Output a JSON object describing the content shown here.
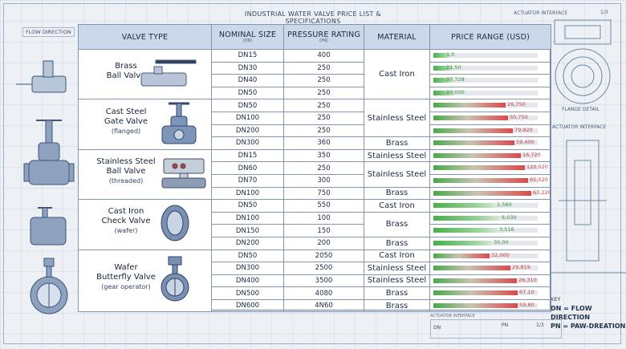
{
  "title": "INDUSTRIAL WATER VALVE PRICE LIST & SPECIFICATIONS",
  "top_right_label": "ACTUATOR INTERFACE",
  "top_right_num": "1/3",
  "flow_label": "FLOW DIRECTION",
  "side_labels": {
    "flange_detail": "FLANGE DETAIL",
    "actuator_interface": "ACTUATOR INTERFACE"
  },
  "bottom_legend": {
    "title": "ACTUATOR INTERFACE",
    "dn": "DN",
    "pn": "PN",
    "num": "1/3"
  },
  "key": {
    "title": "KEY",
    "dn_line": "DN = FLOW DIRECTION",
    "pn_line": "PN = PAW-DREATION"
  },
  "table": {
    "headers": {
      "valve_type": "VALVE TYPE",
      "nominal_size": "NOMINAL SIZE",
      "nominal_size_sub": "(DN)",
      "pressure": "PRESSURE RATING",
      "pressure_sub": "(PN)",
      "material": "MATERIAL",
      "price": "PRICE RANGE (USD)"
    },
    "groups": [
      {
        "name": "Brass",
        "name2": "Ball Valve",
        "sub": "",
        "icon": "brass-ball-valve-icon",
        "rows": [
          {
            "dn": "DN15",
            "pn": "400",
            "price": "1.0",
            "level": 0.02,
            "tone": "g"
          },
          {
            "dn": "DN30",
            "pn": "250",
            "price": "21.50",
            "level": 0.05,
            "tone": "g"
          },
          {
            "dn": "DN40",
            "pn": "250",
            "price": "37,728",
            "level": 0.05,
            "tone": "g"
          },
          {
            "dn": "DN50",
            "pn": "250",
            "price": "20,000",
            "level": 0.06,
            "tone": "g"
          }
        ],
        "materials": [
          {
            "text": "Cast Iron",
            "span": 4
          }
        ]
      },
      {
        "name": "Cast Steel",
        "name2": "Gate Valve",
        "sub": "(flanged)",
        "icon": "gate-valve-icon",
        "rows": [
          {
            "dn": "DN50",
            "pn": "250",
            "price": "26,750",
            "level": 0.55,
            "tone": "r"
          },
          {
            "dn": "DN100",
            "pn": "250",
            "price": "50,750",
            "level": 0.58,
            "tone": "r"
          },
          {
            "dn": "DN200",
            "pn": "250",
            "price": "79,920",
            "level": 0.62,
            "tone": "r"
          },
          {
            "dn": "DN300",
            "pn": "360",
            "price": "59,400",
            "level": 0.64,
            "tone": "r"
          }
        ],
        "materials": [
          {
            "text": "Stainless Steel",
            "span": 3
          },
          {
            "text": "Brass",
            "span": 1
          }
        ]
      },
      {
        "name": "Stainless Steel",
        "name2": "Ball Valve",
        "sub": "(threaded)",
        "icon": "actuated-ball-valve-icon",
        "rows": [
          {
            "dn": "DN15",
            "pn": "350",
            "price": "16,720",
            "level": 0.7,
            "tone": "r"
          },
          {
            "dn": "DN60",
            "pn": "250",
            "price": "120,020",
            "level": 0.74,
            "tone": "r"
          },
          {
            "dn": "DN70",
            "pn": "300",
            "price": "65,520",
            "level": 0.77,
            "tone": "r"
          },
          {
            "dn": "DN100",
            "pn": "750",
            "price": "63,220",
            "level": 0.8,
            "tone": "r"
          }
        ],
        "materials": [
          {
            "text": "Stainless Steel",
            "span": 1
          },
          {
            "text": "Stainless Steel",
            "span": 2
          },
          {
            "text": "Brass",
            "span": 1
          }
        ]
      },
      {
        "name": "Cast Iron",
        "name2": "Check Valve",
        "sub": "(wafer)",
        "icon": "check-valve-icon",
        "rows": [
          {
            "dn": "DN50",
            "pn": "550",
            "price": "2,580",
            "level": 0.45,
            "tone": "g"
          },
          {
            "dn": "DN100",
            "pn": "100",
            "price": "6,030",
            "level": 0.5,
            "tone": "g"
          },
          {
            "dn": "DN150",
            "pn": "150",
            "price": "3,516",
            "level": 0.48,
            "tone": "g"
          },
          {
            "dn": "DN200",
            "pn": "200",
            "price": "30,00",
            "level": 0.42,
            "tone": "g"
          }
        ],
        "materials": [
          {
            "text": "Cast Iron",
            "span": 1
          },
          {
            "text": "Brass",
            "span": 2
          },
          {
            "text": "Brass",
            "span": 1
          }
        ]
      },
      {
        "name": "Wafer",
        "name2": "Butterfly Valve",
        "sub": "(gear operator)",
        "icon": "butterfly-valve-icon",
        "rows": [
          {
            "dn": "DN50",
            "pn": "2050",
            "price": "32,000",
            "level": 0.4,
            "tone": "r"
          },
          {
            "dn": "DN300",
            "pn": "2500",
            "price": "29,819",
            "level": 0.6,
            "tone": "r"
          },
          {
            "dn": "DN400",
            "pn": "3500",
            "price": "26,310",
            "level": 0.66,
            "tone": "r"
          },
          {
            "dn": "DN500",
            "pn": "4080",
            "price": "67,10",
            "level": 0.67,
            "tone": "r"
          },
          {
            "dn": "DN600",
            "pn": "4N60",
            "price": "59,80",
            "level": 0.67,
            "tone": "r"
          }
        ],
        "materials": [
          {
            "text": "Cast Iron",
            "span": 1
          },
          {
            "text": "Stainless Steel",
            "span": 1
          },
          {
            "text": "Stainless Steel",
            "span": 1
          },
          {
            "text": "Brass",
            "span": 1
          },
          {
            "text": "Brass",
            "span": 1
          }
        ]
      }
    ]
  }
}
